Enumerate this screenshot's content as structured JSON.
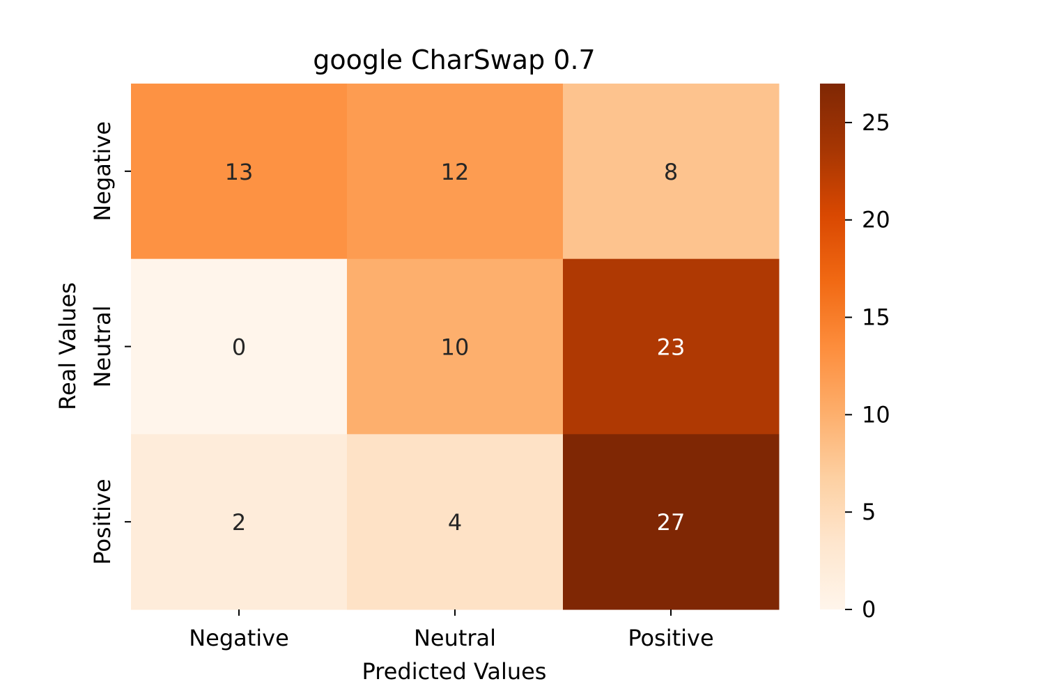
{
  "chart_data": {
    "type": "heatmap",
    "title": "google CharSwap 0.7",
    "xlabel": "Predicted Values",
    "ylabel": "Real Values",
    "x_categories": [
      "Negative",
      "Neutral",
      "Positive"
    ],
    "y_categories": [
      "Negative",
      "Neutral",
      "Positive"
    ],
    "values": [
      [
        13,
        12,
        8
      ],
      [
        0,
        10,
        23
      ],
      [
        2,
        4,
        27
      ]
    ],
    "colormap": "Oranges",
    "colorbar": {
      "range": [
        0,
        27
      ],
      "ticks": [
        0,
        5,
        10,
        15,
        20,
        25
      ],
      "tick_labels": [
        "0",
        "5",
        "10",
        "15",
        "20",
        "25"
      ]
    },
    "colors": {
      "cmap_stops": [
        "#fff5eb",
        "#fee6ce",
        "#fdd0a2",
        "#fdae6b",
        "#fd8d3c",
        "#f16913",
        "#d94801",
        "#a63603",
        "#7f2704"
      ],
      "annotation_dark": "#262626",
      "annotation_light": "#ffffff"
    }
  }
}
